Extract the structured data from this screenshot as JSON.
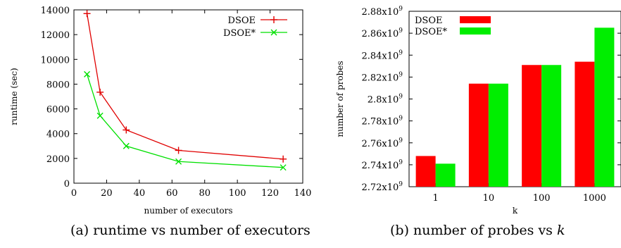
{
  "chart_data": [
    {
      "type": "line",
      "xlabel": "number of executors",
      "ylabel": "runtime (sec)",
      "xlim": [
        0,
        140
      ],
      "ylim": [
        0,
        14000
      ],
      "xticks": [
        "0",
        "20",
        "40",
        "60",
        "80",
        "100",
        "120",
        "140"
      ],
      "yticks": [
        "0",
        "2000",
        "4000",
        "6000",
        "8000",
        "10000",
        "12000",
        "14000"
      ],
      "legend": "top-right",
      "grid": false,
      "x": [
        8,
        16,
        32,
        64,
        128
      ],
      "series": [
        {
          "name": "DSOE",
          "values": [
            13700,
            7350,
            4300,
            2650,
            1950
          ],
          "color": "#e00000",
          "marker": "+"
        },
        {
          "name": "DSOE*",
          "values": [
            8800,
            5450,
            3000,
            1750,
            1270
          ],
          "color": "#00e000",
          "marker": "x"
        }
      ],
      "caption": {
        "prefix": "(a) runtime vs number of executors",
        "italic": ""
      }
    },
    {
      "type": "bar",
      "xlabel": "k",
      "ylabel": "number of probes",
      "ylim": [
        2720000000.0,
        2880000000.0
      ],
      "yticks": [
        {
          "mantissa": "2.72x10",
          "exp": "9"
        },
        {
          "mantissa": "2.74x10",
          "exp": "9"
        },
        {
          "mantissa": "2.76x10",
          "exp": "9"
        },
        {
          "mantissa": "2.78x10",
          "exp": "9"
        },
        {
          "mantissa": "2.8x10",
          "exp": "9"
        },
        {
          "mantissa": "2.82x10",
          "exp": "9"
        },
        {
          "mantissa": "2.84x10",
          "exp": "9"
        },
        {
          "mantissa": "2.86x10",
          "exp": "9"
        },
        {
          "mantissa": "2.88x10",
          "exp": "9"
        }
      ],
      "legend": "top-left",
      "grid": false,
      "categories": [
        "1",
        "10",
        "100",
        "1000"
      ],
      "series": [
        {
          "name": "DSOE",
          "values": [
            2748000000.0,
            2814000000.0,
            2831000000.0,
            2834000000.0
          ],
          "color": "#ff0000"
        },
        {
          "name": "DSOE*",
          "values": [
            2741000000.0,
            2814000000.0,
            2831000000.0,
            2865000000.0
          ],
          "color": "#00ee00"
        }
      ],
      "caption": {
        "prefix": "(b) number of probes vs ",
        "italic": "k"
      }
    }
  ]
}
